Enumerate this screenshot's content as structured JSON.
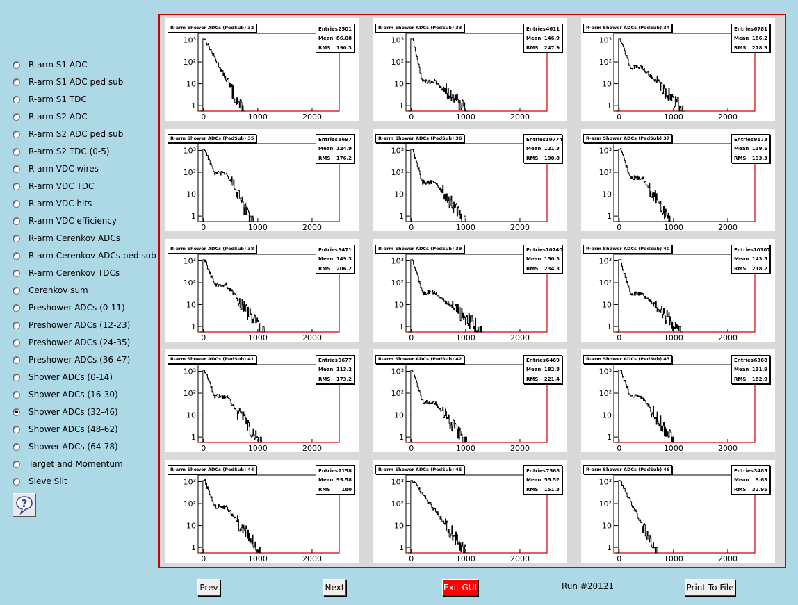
{
  "menu": {
    "items": [
      {
        "label": "R-arm S1 ADC",
        "checked": false
      },
      {
        "label": "R-arm S1 ADC ped sub",
        "checked": false
      },
      {
        "label": "R-arm S1 TDC",
        "checked": false
      },
      {
        "label": "R-arm S2 ADC",
        "checked": false
      },
      {
        "label": "R-arm S2 ADC ped sub",
        "checked": false
      },
      {
        "label": "R-arm S2 TDC (0-5)",
        "checked": false
      },
      {
        "label": "R-arm VDC wires",
        "checked": false
      },
      {
        "label": "R-arm VDC TDC",
        "checked": false
      },
      {
        "label": "R-arm VDC hits",
        "checked": false
      },
      {
        "label": "R-arm VDC efficiency",
        "checked": false
      },
      {
        "label": "R-arm Cerenkov ADCs",
        "checked": false
      },
      {
        "label": "R-arm Cerenkov ADCs ped sub",
        "checked": false
      },
      {
        "label": "R-arm Cerenkov TDCs",
        "checked": false
      },
      {
        "label": "Cerenkov sum",
        "checked": false
      },
      {
        "label": "Preshower ADCs (0-11)",
        "checked": false
      },
      {
        "label": "Preshower ADCs (12-23)",
        "checked": false
      },
      {
        "label": "Preshower ADCs (24-35)",
        "checked": false
      },
      {
        "label": "Preshower ADCs (36-47)",
        "checked": false
      },
      {
        "label": "Shower ADCs (0-14)",
        "checked": false
      },
      {
        "label": "Shower ADCs (16-30)",
        "checked": false
      },
      {
        "label": "Shower ADCs (32-46)",
        "checked": true
      },
      {
        "label": "Shower ADCs (48-62)",
        "checked": false
      },
      {
        "label": "Shower ADCs (64-78)",
        "checked": false
      },
      {
        "label": "Target and Momentum",
        "checked": false
      },
      {
        "label": "Sieve Slit",
        "checked": false
      }
    ],
    "help_icon": "question-icon"
  },
  "stat_labels": {
    "entries": "Entries",
    "mean": "Mean",
    "rms": "RMS"
  },
  "axis": {
    "x_ticks": [
      0,
      1000,
      2000
    ],
    "x_range": [
      -100,
      2500
    ],
    "y_ticks": [
      "10³",
      "10²",
      "10",
      "1"
    ],
    "y_log_range": [
      -0.25,
      3.3
    ]
  },
  "chart_data": [
    {
      "type": "bar",
      "title": "R-arm Shower ADCs (PedSub) 32",
      "entries": "2501",
      "mean": "86.08",
      "rms": "190.3"
    },
    {
      "type": "bar",
      "title": "R-arm Shower ADCs (PedSub) 33",
      "entries": "4611",
      "mean": "146.9",
      "rms": "247.9"
    },
    {
      "type": "bar",
      "title": "R-arm Shower ADCs (PedSub) 34",
      "entries": "6781",
      "mean": "186.2",
      "rms": "278.9"
    },
    {
      "type": "bar",
      "title": "R-arm Shower ADCs (PedSub) 35",
      "entries": "8697",
      "mean": "124.9",
      "rms": "176.2"
    },
    {
      "type": "bar",
      "title": "R-arm Shower ADCs (PedSub) 36",
      "entries": "10774",
      "mean": "121.3",
      "rms": "190.8"
    },
    {
      "type": "bar",
      "title": "R-arm Shower ADCs (PedSub) 37",
      "entries": "9173",
      "mean": "139.5",
      "rms": "193.3"
    },
    {
      "type": "bar",
      "title": "R-arm Shower ADCs (PedSub) 38",
      "entries": "9471",
      "mean": "149.3",
      "rms": "206.2"
    },
    {
      "type": "bar",
      "title": "R-arm Shower ADCs (PedSub) 39",
      "entries": "10740",
      "mean": "150.3",
      "rms": "234.3"
    },
    {
      "type": "bar",
      "title": "R-arm Shower ADCs (PedSub) 40",
      "entries": "10107",
      "mean": "143.5",
      "rms": "218.2"
    },
    {
      "type": "bar",
      "title": "R-arm Shower ADCs (PedSub) 41",
      "entries": "9677",
      "mean": "113.2",
      "rms": "173.2"
    },
    {
      "type": "bar",
      "title": "R-arm Shower ADCs (PedSub) 42",
      "entries": "6469",
      "mean": "182.8",
      "rms": "221.4"
    },
    {
      "type": "bar",
      "title": "R-arm Shower ADCs (PedSub) 43",
      "entries": "6368",
      "mean": "131.9",
      "rms": "182.9"
    },
    {
      "type": "bar",
      "title": "R-arm Shower ADCs (PedSub) 44",
      "entries": "7158",
      "mean": "95.58",
      "rms": "180"
    },
    {
      "type": "bar",
      "title": "R-arm Shower ADCs (PedSub) 45",
      "entries": "7568",
      "mean": "55.52",
      "rms": "151.3"
    },
    {
      "type": "bar",
      "title": "R-arm Shower ADCs (PedSub) 46",
      "entries": "3485",
      "mean": "9.63",
      "rms": "32.95"
    }
  ],
  "footer": {
    "prev_label": "Prev",
    "next_label": "Next",
    "exit_label": "Exit GUI",
    "run_label": "Run #20121",
    "print_label": "Print To File"
  },
  "colors": {
    "background": "#add8e6",
    "frame": "#d40000",
    "exit": "#ff0000"
  }
}
